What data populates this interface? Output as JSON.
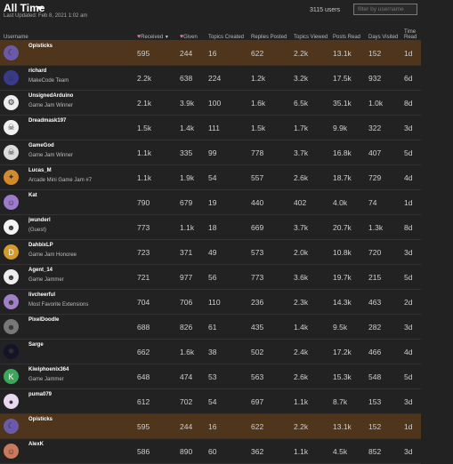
{
  "header": {
    "title": "All Time",
    "updated": "Last Updated: Feb 8, 2021 1:02 am",
    "user_count": "3115 users",
    "filter_placeholder": "filter by username"
  },
  "columns": {
    "username": "Username",
    "received": "Received",
    "given": "Given",
    "topics_created": "Topics Created",
    "replies_posted": "Replies Posted",
    "topics_viewed": "Topics Viewed",
    "posts_read": "Posts Read",
    "days_visited": "Days Visited",
    "time_read": "Time Read"
  },
  "colors": {
    "highlight_row": "#4e351c",
    "heart": "#e27a9e"
  },
  "rows": [
    {
      "name": "Opisticks",
      "title": "",
      "received": "595",
      "given": "244",
      "topics": "16",
      "replies": "622",
      "viewed": "2.2k",
      "read": "13.1k",
      "days": "152",
      "time": "1d",
      "highlight": true,
      "avatar": "#6b5aa8",
      "avatar_icon": "moon-icon"
    },
    {
      "name": "richard",
      "title": "MakeCode Team",
      "received": "2.2k",
      "given": "638",
      "topics": "224",
      "replies": "1.2k",
      "viewed": "3.2k",
      "read": "17.5k",
      "days": "932",
      "time": "6d",
      "avatar": "#3a3a8a",
      "avatar_icon": "face-icon"
    },
    {
      "name": "UnsignedArduino",
      "title": "Game Jam Winner",
      "received": "2.1k",
      "given": "3.9k",
      "topics": "100",
      "replies": "1.6k",
      "viewed": "6.5k",
      "read": "35.1k",
      "days": "1.0k",
      "time": "8d",
      "avatar": "#eeeeee",
      "avatar_icon": "robot-icon"
    },
    {
      "name": "Dreadmask197",
      "title": "",
      "received": "1.5k",
      "given": "1.4k",
      "topics": "111",
      "replies": "1.5k",
      "viewed": "1.7k",
      "read": "9.9k",
      "days": "322",
      "time": "3d",
      "avatar": "#f0f0f0",
      "avatar_icon": "skull-icon"
    },
    {
      "name": "GameGod",
      "title": "Game Jam Winner",
      "received": "1.1k",
      "given": "335",
      "topics": "99",
      "replies": "778",
      "viewed": "3.7k",
      "read": "16.8k",
      "days": "407",
      "time": "5d",
      "avatar": "#dddddd",
      "avatar_icon": "skull-icon"
    },
    {
      "name": "Lucas_M",
      "title": "Arcade Mini Game Jam #7",
      "received": "1.1k",
      "given": "1.9k",
      "topics": "54",
      "replies": "557",
      "viewed": "2.6k",
      "read": "18.7k",
      "days": "729",
      "time": "4d",
      "avatar": "#d4892a",
      "avatar_icon": "duck-icon"
    },
    {
      "name": "Kat",
      "title": "",
      "received": "790",
      "given": "679",
      "topics": "19",
      "replies": "440",
      "viewed": "402",
      "read": "4.0k",
      "days": "74",
      "time": "1d",
      "avatar": "#9c7acc",
      "avatar_icon": "face-icon"
    },
    {
      "name": "jwunderl",
      "title": "(Guest)",
      "received": "773",
      "given": "1.1k",
      "topics": "18",
      "replies": "669",
      "viewed": "3.7k",
      "read": "20.7k",
      "days": "1.3k",
      "time": "8d",
      "avatar": "#f4f4f4",
      "avatar_icon": "character-icon"
    },
    {
      "name": "DahbixLP",
      "title": "Game Jam Honoree",
      "received": "723",
      "given": "371",
      "topics": "49",
      "replies": "573",
      "viewed": "2.0k",
      "read": "10.8k",
      "days": "720",
      "time": "3d",
      "avatar": "#d49a2a",
      "avatar_letter": "D"
    },
    {
      "name": "Agent_14",
      "title": "Game Jammer",
      "received": "721",
      "given": "977",
      "topics": "56",
      "replies": "773",
      "viewed": "3.6k",
      "read": "19.7k",
      "days": "215",
      "time": "5d",
      "avatar": "#eeeeee",
      "avatar_icon": "character-icon"
    },
    {
      "name": "livcheerful",
      "title": "Most Favorite Extensions",
      "received": "704",
      "given": "706",
      "topics": "110",
      "replies": "236",
      "viewed": "2.3k",
      "read": "14.3k",
      "days": "463",
      "time": "2d",
      "avatar": "#a080c8",
      "avatar_icon": "character-icon"
    },
    {
      "name": "PixelDoodle",
      "title": "",
      "received": "688",
      "given": "826",
      "topics": "61",
      "replies": "435",
      "viewed": "1.4k",
      "read": "9.5k",
      "days": "282",
      "time": "3d",
      "avatar": "#777777",
      "avatar_icon": "character-icon"
    },
    {
      "name": "Sarge",
      "title": "",
      "received": "662",
      "given": "1.6k",
      "topics": "38",
      "replies": "502",
      "viewed": "2.4k",
      "read": "17.2k",
      "days": "466",
      "time": "4d",
      "avatar": "#141428",
      "avatar_icon": "galaxy-icon"
    },
    {
      "name": "Kiwiphoenix364",
      "title": "Game Jammer",
      "received": "648",
      "given": "474",
      "topics": "53",
      "replies": "563",
      "viewed": "2.6k",
      "read": "15.3k",
      "days": "548",
      "time": "5d",
      "avatar": "#3aa85a",
      "avatar_letter": "K"
    },
    {
      "name": "puma079",
      "title": "",
      "received": "612",
      "given": "702",
      "topics": "54",
      "replies": "697",
      "viewed": "1.1k",
      "read": "8.7k",
      "days": "153",
      "time": "3d",
      "avatar": "#e8d8f0",
      "avatar_icon": "blob-icon"
    },
    {
      "name": "Opisticks",
      "title": "",
      "received": "595",
      "given": "244",
      "topics": "16",
      "replies": "622",
      "viewed": "2.2k",
      "read": "13.1k",
      "days": "152",
      "time": "1d",
      "highlight": true,
      "avatar": "#6b5aa8",
      "avatar_icon": "moon-icon"
    },
    {
      "name": "AlexK",
      "title": "",
      "received": "586",
      "given": "890",
      "topics": "60",
      "replies": "362",
      "viewed": "1.1k",
      "read": "4.5k",
      "days": "852",
      "time": "3d",
      "avatar": "#c87a5a",
      "avatar_icon": "face-icon"
    }
  ]
}
